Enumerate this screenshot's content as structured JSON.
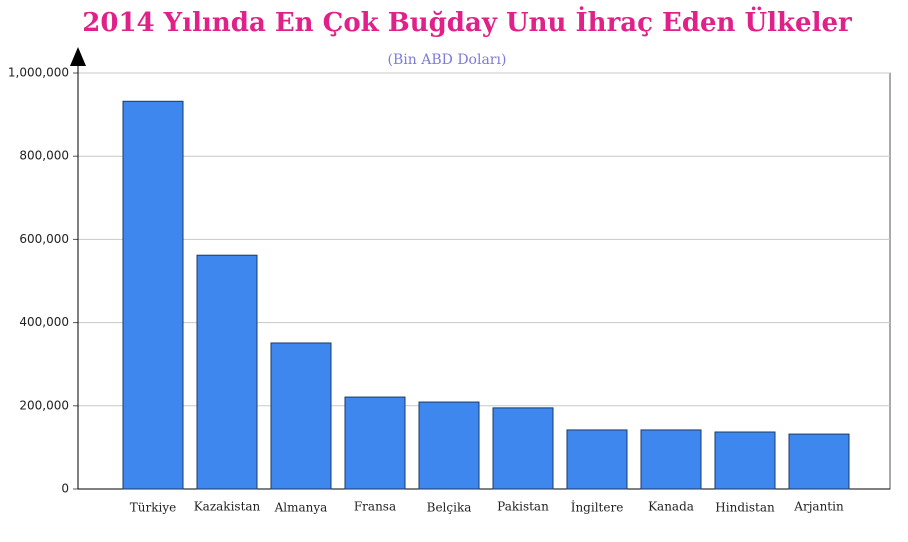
{
  "chart_data": {
    "type": "bar",
    "title": "2014 Yılında En Çok Buğday Unu İhraç Eden Ülkeler",
    "subtitle": "(Bin ABD Doları)",
    "categories": [
      "Türkiye",
      "Kazakistan",
      "Almanya",
      "Fransa",
      "Belçika",
      "Pakistan",
      "İngiltere",
      "Kanada",
      "Hindistan",
      "Arjantin"
    ],
    "values": [
      932000,
      562000,
      351000,
      221000,
      209000,
      195000,
      142000,
      142000,
      137000,
      132000
    ],
    "color": "#3e87ee",
    "ylim": [
      0,
      1000000
    ],
    "yticks": [
      0,
      {
        "value": 200000,
        "label": "200,000"
      },
      {
        "value": 400000,
        "label": "400,000"
      },
      {
        "value": 600000,
        "label": "600,000"
      },
      {
        "value": 800000,
        "label": "800,000"
      },
      {
        "value": 1000000,
        "label": "1,000,000"
      }
    ],
    "grid": true
  }
}
